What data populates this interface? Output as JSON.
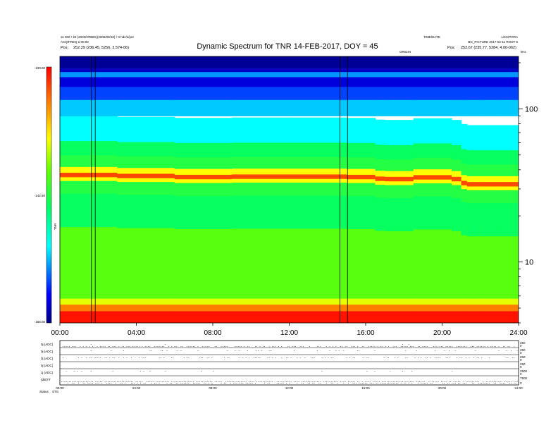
{
  "header": {
    "title": "Dynamic Spectrum for TNR 14-FEB-2017, DOY = 45",
    "top_left_line1": "sn 000 • k0 (2003/ORBIS)(2006/09/10) • 0 hdc/e/per",
    "top_left_line2": "ACQ/FREQ a 00:00",
    "top_left_pos_label": "Pos:",
    "top_left_pos_value": "252.29 (236.45, 5256, 2.574-06)",
    "top_center_small": "TIME/DATE",
    "top_right_line1": "LOG/PORA",
    "top_right_line2": "BG_PICTURE 2017-02-11 ROOT 5",
    "top_right_pos_label": "Pos:",
    "top_right_pos_value": "252.67 (235.77, 5284, 4.00-062)",
    "right_corner_tag": "kHz",
    "center_marker": "ORIGIN"
  },
  "colorbar": {
    "ticks": [
      "-130.00",
      "-142.50",
      "-155.00"
    ],
    "label": "TNR"
  },
  "chart_data": {
    "type": "heatmap",
    "title": "Dynamic Spectrum for TNR 14-FEB-2017, DOY = 45",
    "x_ticks": [
      "00:00",
      "04:00",
      "08:00",
      "12:00",
      "16:00",
      "20:00",
      "24:00"
    ],
    "x_range_hours": [
      0,
      24
    ],
    "y_scale": "log",
    "y_ticks": [
      "100",
      "10"
    ],
    "y_range_khz": [
      4,
      220
    ],
    "color_range": [
      -155,
      -130
    ],
    "vertical_lines_hours": [
      1.65,
      1.85,
      14.65,
      15.05
    ],
    "bands": [
      {
        "from_khz": 4,
        "to_khz": 4.8,
        "level": -130.5
      },
      {
        "from_khz": 4.8,
        "to_khz": 5.3,
        "level": -133.5
      },
      {
        "from_khz": 5.3,
        "to_khz": 5.8,
        "level": -137.5
      },
      {
        "from_khz": 5.8,
        "to_khz": 17,
        "level": -140.5
      },
      {
        "from_khz": 17,
        "to_khz": 28,
        "level": -143.5
      },
      {
        "from_khz": 28,
        "to_khz": 34,
        "level": -142.5
      },
      {
        "from_khz": 34,
        "to_khz": 36,
        "level": -137
      },
      {
        "from_khz": 36,
        "to_khz": 38.5,
        "level": -132
      },
      {
        "from_khz": 38.5,
        "to_khz": 42,
        "level": -137
      },
      {
        "from_khz": 42,
        "to_khz": 50,
        "level": -142.5
      },
      {
        "from_khz": 50,
        "to_khz": 62,
        "level": -143.5
      },
      {
        "from_khz": 62,
        "to_khz": 90,
        "level": -147.5
      },
      {
        "from_khz": 90,
        "to_khz": 115,
        "level": -148.5
      },
      {
        "from_khz": 115,
        "to_khz": 140,
        "level": -151
      },
      {
        "from_khz": 140,
        "to_khz": 162,
        "level": -153
      },
      {
        "from_khz": 162,
        "to_khz": 175,
        "level": -149.5
      },
      {
        "from_khz": 175,
        "to_khz": 185,
        "level": -153.5
      },
      {
        "from_khz": 185,
        "to_khz": 220,
        "level": -154.5
      }
    ],
    "band_step_hours": [
      0,
      1,
      3,
      6,
      9,
      12,
      15,
      16.5,
      17,
      18.5,
      20.5,
      21,
      21.3,
      22,
      23,
      24
    ],
    "band_step_factor": [
      1.0,
      1.0,
      1.0,
      0.97,
      0.97,
      0.98,
      0.97,
      0.97,
      0.92,
      0.96,
      0.97,
      0.91,
      0.86,
      0.88,
      0.86,
      0.88
    ]
  },
  "panels": {
    "left_labels": [
      "0j (ADC)",
      "0j (ADC)",
      "0j (ADC)",
      "0j (ADC)",
      "Jj (ADC)",
      "(dB)TT"
    ],
    "right_labels": [
      "250",
      "0",
      "250",
      "0",
      "250",
      "0",
      "250",
      "0",
      "2500",
      "0",
      "7500",
      "0"
    ],
    "x_ticks": [
      "00:00",
      "04:00",
      "08:00",
      "12:00",
      "16:00",
      "20:00",
      "24:00"
    ],
    "footer_label": "Status",
    "footer_value": "STG"
  }
}
